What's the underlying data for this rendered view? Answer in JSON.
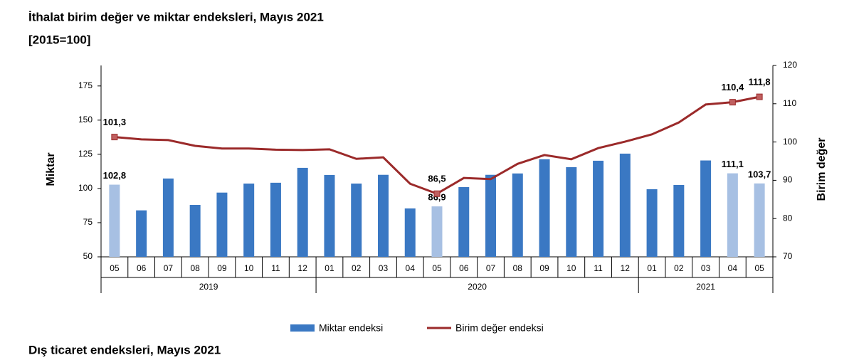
{
  "chart_data": {
    "type": "bar_line",
    "title": "İthalat birim değer ve miktar endeksleri, Mayıs 2021",
    "subtitle": "[2015=100]",
    "footer": "Dış ticaret endeksleri, Mayıs 2021",
    "ylabel": "Miktar",
    "y2label": "Birim değer",
    "categories": [
      "05",
      "06",
      "07",
      "08",
      "09",
      "10",
      "11",
      "12",
      "01",
      "02",
      "03",
      "04",
      "05",
      "06",
      "07",
      "08",
      "09",
      "10",
      "11",
      "12",
      "01",
      "02",
      "03",
      "04",
      "05"
    ],
    "groups": [
      {
        "label": "2019",
        "count": 8
      },
      {
        "label": "2020",
        "count": 12
      },
      {
        "label": "2021",
        "count": 5
      }
    ],
    "ylim": [
      50,
      190
    ],
    "yticks": [
      50,
      75,
      100,
      125,
      150,
      175
    ],
    "y2lim": [
      70,
      120
    ],
    "y2ticks": [
      70,
      80,
      90,
      100,
      110,
      120
    ],
    "series": [
      {
        "name": "Miktar endeksi",
        "type": "bar",
        "color": "#3a78c3",
        "colors": [
          "#a7c0e3",
          "#3a78c3",
          "#3a78c3",
          "#3a78c3",
          "#3a78c3",
          "#3a78c3",
          "#3a78c3",
          "#3a78c3",
          "#3a78c3",
          "#3a78c3",
          "#3a78c3",
          "#3a78c3",
          "#a7c0e3",
          "#3a78c3",
          "#3a78c3",
          "#3a78c3",
          "#3a78c3",
          "#3a78c3",
          "#3a78c3",
          "#3a78c3",
          "#3a78c3",
          "#3a78c3",
          "#3a78c3",
          "#a7c0e3",
          "#a7c0e3"
        ],
        "values": [
          102.8,
          84,
          107.3,
          88,
          97,
          103.6,
          104.2,
          115.1,
          109.9,
          103.6,
          110,
          85.4,
          86.9,
          101,
          110,
          111,
          121.4,
          115.6,
          120.3,
          125.5,
          99.5,
          102.6,
          120.5,
          111.1,
          103.7
        ],
        "value_labels": [
          "102,8",
          null,
          null,
          null,
          null,
          null,
          null,
          null,
          null,
          null,
          null,
          null,
          "86,9",
          null,
          null,
          null,
          null,
          null,
          null,
          null,
          null,
          null,
          null,
          "111,1",
          "103,7"
        ]
      },
      {
        "name": "Birim değer endeksi",
        "type": "line",
        "axis": "y2",
        "color": "#9b2a2a",
        "marker_color": "#c06060",
        "values": [
          101.3,
          100.7,
          100.5,
          99,
          98.3,
          98.3,
          98,
          97.9,
          98.1,
          95.6,
          96,
          89.1,
          86.5,
          90.6,
          90.3,
          94.3,
          96.6,
          95.5,
          98.4,
          100.1,
          102,
          105.1,
          109.8,
          110.4,
          111.8
        ],
        "value_labels": [
          "101,3",
          null,
          null,
          null,
          null,
          null,
          null,
          null,
          null,
          null,
          null,
          null,
          "86,5",
          null,
          null,
          null,
          null,
          null,
          null,
          null,
          null,
          null,
          null,
          "110,4",
          "111,8"
        ]
      }
    ]
  }
}
